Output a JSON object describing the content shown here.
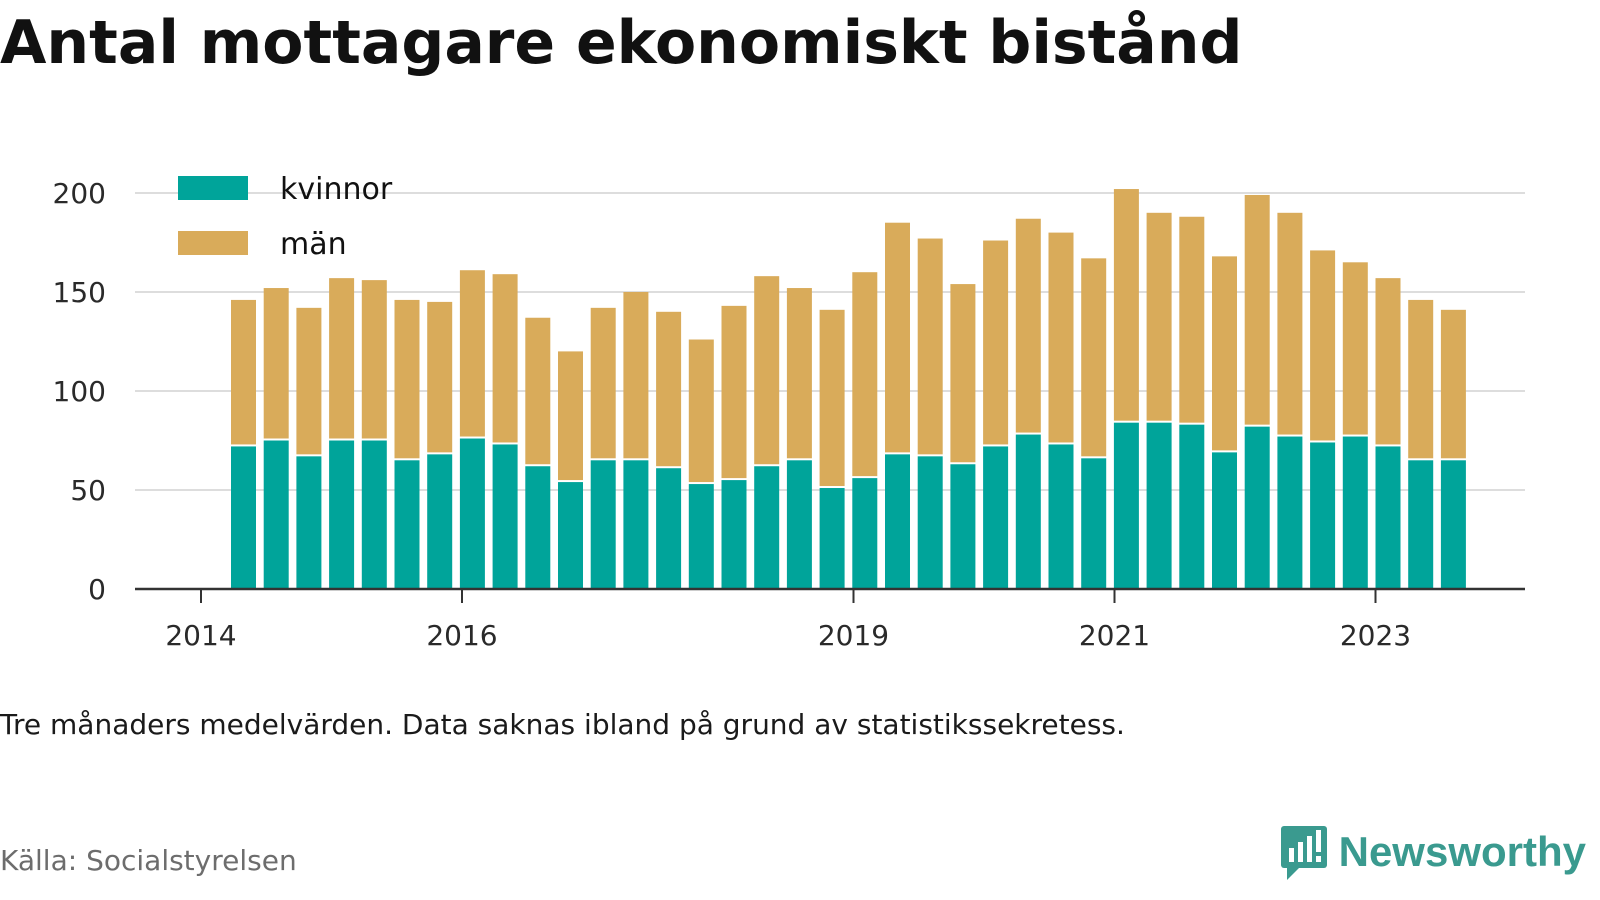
{
  "title": "Antal mottagare ekonomiskt bistånd",
  "note": "Tre månaders medelvärden. Data saknas ibland på grund av statistikssekretess.",
  "source": "Källa: Socialstyrelsen",
  "brand": {
    "name": "Newsworthy",
    "icon": "newsworthy-logo-icon"
  },
  "colors": {
    "kvinnor": "#00a49a",
    "man": "#d9ab5a",
    "grid": "#dddddd",
    "axis": "#333333"
  },
  "chart_data": {
    "type": "bar",
    "stacked": true,
    "ylim": [
      0,
      200
    ],
    "yticks": [
      "0",
      "50",
      "100",
      "150",
      "200"
    ],
    "xticks": [
      "2014",
      "2016",
      "2019",
      "2021",
      "2023"
    ],
    "grid": true,
    "legend": "top-left",
    "series": [
      {
        "name": "kvinnor",
        "values": [
          72,
          75,
          67,
          75,
          75,
          65,
          68,
          76,
          73,
          62,
          54,
          65,
          65,
          61,
          53,
          55,
          62,
          65,
          51,
          56,
          68,
          67,
          63,
          72,
          78,
          73,
          66,
          84,
          84,
          83,
          69,
          82,
          77,
          74,
          77,
          72,
          65,
          65
        ]
      },
      {
        "name": "män",
        "values": [
          74,
          77,
          75,
          82,
          81,
          81,
          77,
          85,
          86,
          75,
          66,
          77,
          85,
          79,
          73,
          88,
          96,
          87,
          90,
          104,
          117,
          110,
          91,
          104,
          109,
          107,
          101,
          118,
          106,
          105,
          99,
          117,
          113,
          97,
          88,
          85,
          81,
          76
        ]
      }
    ]
  }
}
